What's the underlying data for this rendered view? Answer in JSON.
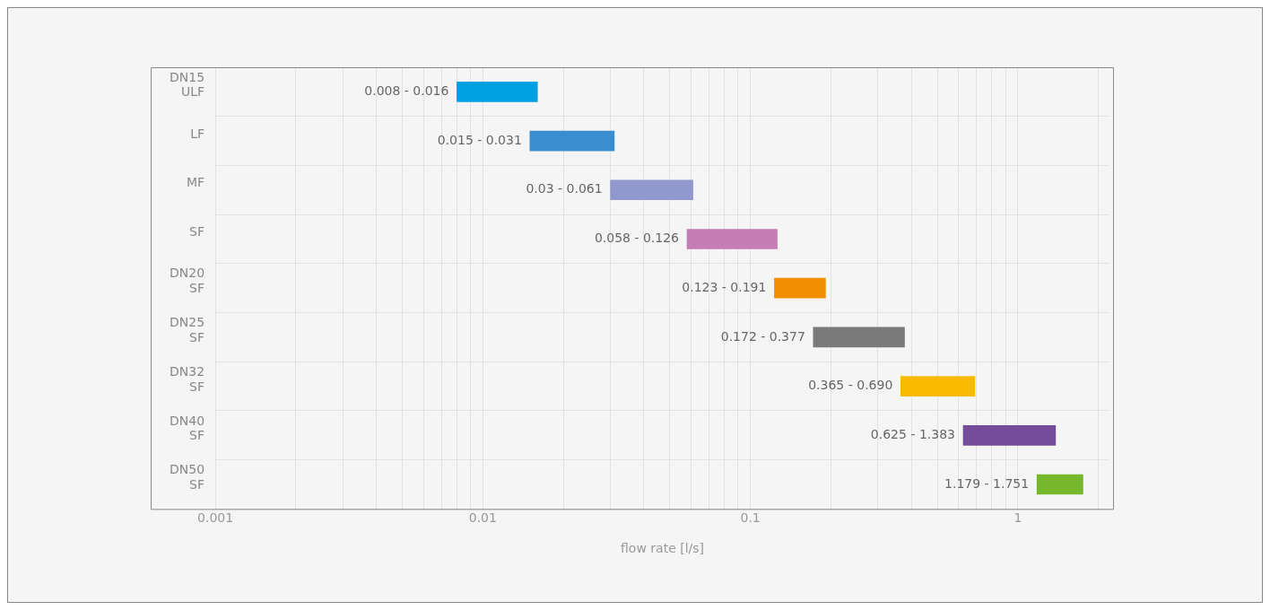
{
  "chart_data": {
    "type": "bar",
    "orientation": "horizontal",
    "log": "x",
    "xlabel": "flow rate [l/s]",
    "categories": [
      "DN15\nULF",
      "LF",
      "MF",
      "SF",
      "DN20\nSF",
      "DN25\nSF",
      "DN32\nSF",
      "DN40\nSF",
      "DN50\nSF"
    ],
    "base": [
      0.008,
      0.015,
      0.03,
      0.058,
      0.123,
      0.172,
      0.365,
      0.625,
      1.179
    ],
    "values": [
      0.008,
      0.016,
      0.031,
      0.068,
      0.068,
      0.205,
      0.325,
      0.758,
      0.572
    ],
    "colors": [
      "#00a0e3",
      "#3a8ecf",
      "#9198cd",
      "#c57db5",
      "#f18f00",
      "#7a7a7a",
      "#fbba00",
      "#754b9b",
      "#76b82a"
    ],
    "annotations": [
      {
        "text": "0.008 - 0.016",
        "x": 0.008,
        "y": "DN15\nULF"
      },
      {
        "text": "0.015 - 0.031",
        "x": 0.015,
        "y": "LF"
      },
      {
        "text": "0.03 - 0.061",
        "x": 0.03,
        "y": "MF"
      },
      {
        "text": "0.058 - 0.126",
        "x": 0.058,
        "y": "SF"
      },
      {
        "text": "0.123 - 0.191",
        "x": 0.123,
        "y": "DN20\nSF"
      },
      {
        "text": "0.172 - 0.377",
        "x": 0.172,
        "y": "DN25\nSF"
      },
      {
        "text": "0.365 - 0.690",
        "x": 0.365,
        "y": "DN32\nSF"
      },
      {
        "text": "0.625 - 1.383",
        "x": 0.625,
        "y": "DN40\nSF"
      },
      {
        "text": "1.179 - 1.751",
        "x": 1.179,
        "y": "DN50\nSF"
      }
    ],
    "xlim": [
      0.001,
      2.2
    ],
    "xticks": [
      0.001,
      {
        "value": 0.002,
        "label": null
      },
      {
        "value": 0.003,
        "label": null
      },
      {
        "value": 0.004,
        "label": null
      },
      {
        "value": 0.005,
        "label": null
      },
      {
        "value": 0.006,
        "label": null
      },
      {
        "value": 0.007,
        "label": null
      },
      {
        "value": 0.008,
        "label": null
      },
      {
        "value": 0.009,
        "label": null
      },
      0.01,
      {
        "value": 0.02,
        "label": null
      },
      {
        "value": 0.03,
        "label": null
      },
      {
        "value": 0.04,
        "label": null
      },
      {
        "value": 0.05,
        "label": null
      },
      {
        "value": 0.06,
        "label": null
      },
      {
        "value": 0.07,
        "label": null
      },
      {
        "value": 0.08,
        "label": null
      },
      {
        "value": 0.09,
        "label": null
      },
      0.1,
      {
        "value": 0.2,
        "label": null
      },
      {
        "value": 0.3,
        "label": null
      },
      {
        "value": 0.4,
        "label": null
      },
      {
        "value": 0.5,
        "label": null
      },
      {
        "value": 0.6,
        "label": null
      },
      {
        "value": 0.7,
        "label": null
      },
      {
        "value": 0.8,
        "label": null
      },
      {
        "value": 0.9,
        "label": null
      },
      1,
      {
        "value": 2,
        "label": null
      }
    ],
    "grid": true,
    "legend": false
  }
}
